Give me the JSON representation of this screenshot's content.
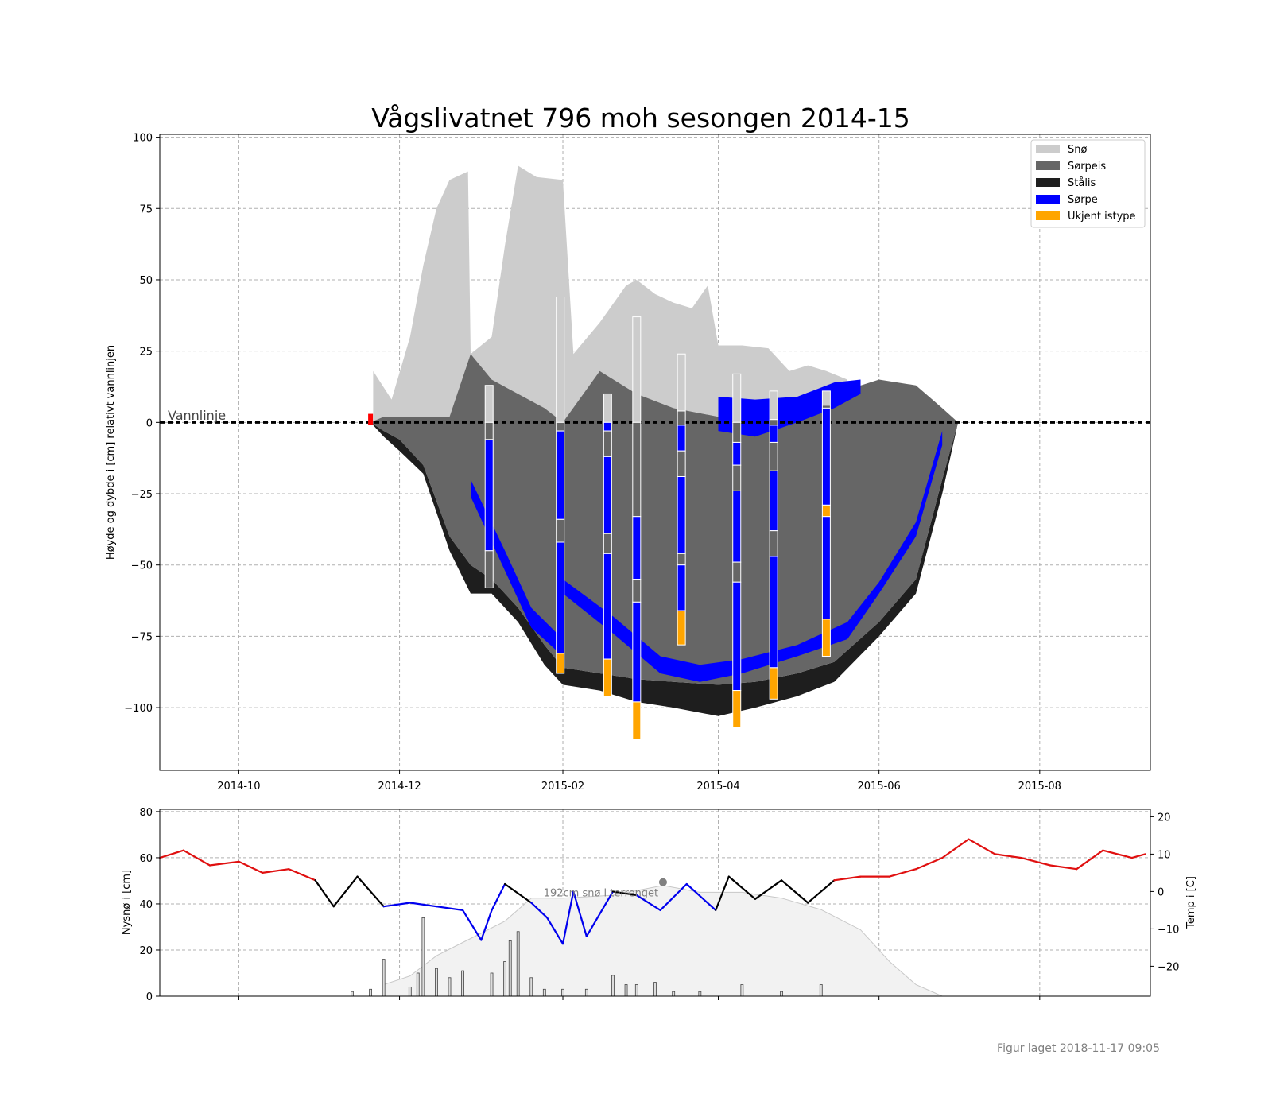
{
  "title": "Vågslivatnet 796 moh sesongen 2014-15",
  "footer": "Figur laget 2018-11-17 09:05",
  "colors": {
    "snow": "#cccccc",
    "slush_ice": "#666666",
    "black_ice": "#1e1e1e",
    "slush": "#0000ff",
    "unknown": "#ffa500",
    "temp_warm": "#e01010",
    "temp_cold": "#0000ee",
    "temp_mid": "#000000",
    "snow_depth_fill": "#f2f2f2"
  },
  "chart_data": [
    {
      "type": "area",
      "ylabel": "Høyde og dybde i [cm] relativt vannlinjen",
      "ylim": [
        -122,
        101
      ],
      "yticks": [
        "100",
        "75",
        "50",
        "25",
        "0",
        "−25",
        "−50",
        "−75",
        "−100"
      ],
      "xlim": [
        "2014-09-01",
        "2015-09-12"
      ],
      "xticks": [
        "2014-10",
        "2014-12",
        "2015-02",
        "2015-04",
        "2015-06",
        "2015-08"
      ],
      "grid": true,
      "legend_position": "top-right",
      "legend": [
        {
          "label": "Snø",
          "color": "#cccccc"
        },
        {
          "label": "Sørpeis",
          "color": "#666666"
        },
        {
          "label": "Stålis",
          "color": "#1e1e1e"
        },
        {
          "label": "Sørpe",
          "color": "#0000ff"
        },
        {
          "label": "Ukjent istype",
          "color": "#ffa500"
        }
      ],
      "waterline_label": "Vannlinje",
      "ice_cover": {
        "dates": [
          "2014-11-20",
          "2014-11-25",
          "2014-12-01",
          "2014-12-10",
          "2014-12-20",
          "2014-12-28",
          "2015-01-05",
          "2015-01-15",
          "2015-01-25",
          "2015-02-01",
          "2015-02-15",
          "2015-03-01",
          "2015-03-15",
          "2015-04-01",
          "2015-04-15",
          "2015-05-01",
          "2015-05-15",
          "2015-06-01",
          "2015-06-15",
          "2015-06-25",
          "2015-07-01"
        ],
        "slush_ice_top": [
          0,
          2,
          2,
          2,
          2,
          24,
          15,
          10,
          5,
          0,
          18,
          10,
          5,
          2,
          0,
          5,
          10,
          15,
          13,
          5,
          0
        ],
        "slush_ice_bottom": [
          0,
          -3,
          -6,
          -15,
          -40,
          -50,
          -55,
          -65,
          -78,
          -86,
          -88,
          -90,
          -91,
          -92,
          -91,
          -88,
          -84,
          -70,
          -55,
          -20,
          0
        ],
        "black_ice_bottom": [
          0,
          -5,
          -10,
          -18,
          -45,
          -60,
          -60,
          -70,
          -85,
          -92,
          -94,
          -98,
          -100,
          -103,
          -100,
          -96,
          -91,
          -75,
          -60,
          -25,
          0
        ]
      },
      "snow": {
        "dates": [
          "2014-11-21",
          "2014-11-28",
          "2014-12-05",
          "2014-12-10",
          "2014-12-15",
          "2014-12-20",
          "2014-12-27",
          "2014-12-28",
          "2015-01-05",
          "2015-01-10",
          "2015-01-15",
          "2015-01-22",
          "2015-02-01",
          "2015-02-05",
          "2015-02-15",
          "2015-02-25",
          "2015-03-01",
          "2015-03-08",
          "2015-03-15",
          "2015-03-22",
          "2015-03-28",
          "2015-04-01",
          "2015-04-10",
          "2015-04-20",
          "2015-04-28",
          "2015-05-05",
          "2015-05-12",
          "2015-05-20"
        ],
        "top": [
          18,
          8,
          30,
          55,
          75,
          85,
          88,
          24,
          30,
          62,
          90,
          86,
          85,
          24,
          35,
          48,
          50,
          45,
          42,
          40,
          48,
          27,
          27,
          26,
          18,
          20,
          18,
          15
        ]
      },
      "slush_bands": [
        {
          "dates": [
            "2014-12-28",
            "2015-01-10",
            "2015-01-20",
            "2015-02-01"
          ],
          "top": [
            -20,
            -45,
            -65,
            -76
          ],
          "bottom": [
            -26,
            -52,
            -72,
            -82
          ]
        },
        {
          "dates": [
            "2015-02-01",
            "2015-02-20",
            "2015-03-10",
            "2015-03-25",
            "2015-04-10",
            "2015-05-01",
            "2015-05-20",
            "2015-06-01",
            "2015-06-15",
            "2015-06-25"
          ],
          "top": [
            -55,
            -68,
            -82,
            -85,
            -83,
            -78,
            -70,
            -56,
            -35,
            -3
          ],
          "bottom": [
            -60,
            -74,
            -88,
            -91,
            -88,
            -82,
            -76,
            -60,
            -40,
            -8
          ]
        },
        {
          "dates": [
            "2015-04-01",
            "2015-04-15",
            "2015-05-01",
            "2015-05-15",
            "2015-05-25"
          ],
          "top": [
            9,
            8,
            9,
            14,
            15
          ],
          "bottom": [
            -3,
            -5,
            0,
            5,
            10
          ]
        }
      ],
      "cores": [
        {
          "date": "2015-01-04",
          "layers": [
            {
              "t": "snow",
              "top": 13,
              "bottom": 0
            },
            {
              "t": "slush_ice",
              "top": 0,
              "bottom": -6
            },
            {
              "t": "slush",
              "top": -6,
              "bottom": -45
            },
            {
              "t": "slush_ice",
              "top": -45,
              "bottom": -58
            }
          ]
        },
        {
          "date": "2015-01-31",
          "layers": [
            {
              "t": "snow",
              "top": 44,
              "bottom": 0
            },
            {
              "t": "slush_ice",
              "top": 0,
              "bottom": -3
            },
            {
              "t": "slush",
              "top": -3,
              "bottom": -34
            },
            {
              "t": "slush_ice",
              "top": -34,
              "bottom": -42
            },
            {
              "t": "slush",
              "top": -42,
              "bottom": -81
            },
            {
              "t": "unknown",
              "top": -81,
              "bottom": -88
            }
          ]
        },
        {
          "date": "2015-02-18",
          "layers": [
            {
              "t": "snow",
              "top": 10,
              "bottom": 0
            },
            {
              "t": "slush",
              "top": 0,
              "bottom": -3
            },
            {
              "t": "slush_ice",
              "top": -3,
              "bottom": -12
            },
            {
              "t": "slush",
              "top": -12,
              "bottom": -39
            },
            {
              "t": "slush_ice",
              "top": -39,
              "bottom": -46
            },
            {
              "t": "slush",
              "top": -46,
              "bottom": -83
            },
            {
              "t": "unknown",
              "top": -83,
              "bottom": -96
            }
          ]
        },
        {
          "date": "2015-03-01",
          "layers": [
            {
              "t": "snow",
              "top": 37,
              "bottom": 0
            },
            {
              "t": "slush_ice",
              "top": 0,
              "bottom": -33
            },
            {
              "t": "slush",
              "top": -33,
              "bottom": -55
            },
            {
              "t": "slush_ice",
              "top": -55,
              "bottom": -63
            },
            {
              "t": "slush",
              "top": -63,
              "bottom": -98
            },
            {
              "t": "unknown",
              "top": -98,
              "bottom": -111
            }
          ]
        },
        {
          "date": "2015-03-18",
          "layers": [
            {
              "t": "snow",
              "top": 24,
              "bottom": 4
            },
            {
              "t": "slush_ice",
              "top": 4,
              "bottom": -1
            },
            {
              "t": "slush",
              "top": -1,
              "bottom": -10
            },
            {
              "t": "slush_ice",
              "top": -10,
              "bottom": -19
            },
            {
              "t": "slush",
              "top": -19,
              "bottom": -46
            },
            {
              "t": "slush_ice",
              "top": -46,
              "bottom": -50
            },
            {
              "t": "slush",
              "top": -50,
              "bottom": -66
            },
            {
              "t": "unknown",
              "top": -66,
              "bottom": -78
            }
          ]
        },
        {
          "date": "2015-04-08",
          "layers": [
            {
              "t": "snow",
              "top": 17,
              "bottom": 0
            },
            {
              "t": "slush_ice",
              "top": 0,
              "bottom": -7
            },
            {
              "t": "slush",
              "top": -7,
              "bottom": -15
            },
            {
              "t": "slush_ice",
              "top": -15,
              "bottom": -24
            },
            {
              "t": "slush",
              "top": -24,
              "bottom": -49
            },
            {
              "t": "slush_ice",
              "top": -49,
              "bottom": -56
            },
            {
              "t": "slush",
              "top": -56,
              "bottom": -94
            },
            {
              "t": "unknown",
              "top": -94,
              "bottom": -107
            }
          ]
        },
        {
          "date": "2015-04-22",
          "layers": [
            {
              "t": "snow",
              "top": 11,
              "bottom": 1
            },
            {
              "t": "slush_ice",
              "top": 1,
              "bottom": -1
            },
            {
              "t": "slush",
              "top": -1,
              "bottom": -7
            },
            {
              "t": "slush_ice",
              "top": -7,
              "bottom": -17
            },
            {
              "t": "slush",
              "top": -17,
              "bottom": -38
            },
            {
              "t": "slush_ice",
              "top": -38,
              "bottom": -47
            },
            {
              "t": "slush",
              "top": -47,
              "bottom": -86
            },
            {
              "t": "unknown",
              "top": -86,
              "bottom": -97
            }
          ]
        },
        {
          "date": "2015-05-12",
          "layers": [
            {
              "t": "snow",
              "top": 11,
              "bottom": 6
            },
            {
              "t": "slush_ice",
              "top": 6,
              "bottom": 5
            },
            {
              "t": "slush",
              "top": 5,
              "bottom": -29
            },
            {
              "t": "unknown",
              "top": -29,
              "bottom": -33
            },
            {
              "t": "slush",
              "top": -33,
              "bottom": -69
            },
            {
              "t": "unknown",
              "top": -69,
              "bottom": -82
            }
          ]
        }
      ],
      "freeze_marker": {
        "date": "2014-11-20",
        "top": 3,
        "bottom": -1,
        "color": "#ff0000"
      }
    },
    {
      "type": "bar",
      "ylabel": "Nysnø i [cm]",
      "y2label": "Temp i [C]",
      "ylim": [
        0,
        81
      ],
      "yticks": [
        "0",
        "20",
        "40",
        "60",
        "80"
      ],
      "y2lim": [
        -28,
        22
      ],
      "y2ticks": [
        "−20",
        "−10",
        "0",
        "10",
        "20"
      ],
      "grid": true,
      "annotation": "192cm snø i terrenget",
      "annotation_point": {
        "date": "2015-03-11",
        "snow_depth_cm": 192
      },
      "snow_depth_terrain": {
        "dates": [
          "2014-11-25",
          "2014-12-05",
          "2014-12-15",
          "2014-12-28",
          "2015-01-10",
          "2015-01-20",
          "2015-02-01",
          "2015-02-20",
          "2015-03-11",
          "2015-03-25",
          "2015-04-10",
          "2015-04-25",
          "2015-05-10",
          "2015-05-25",
          "2015-06-05",
          "2015-06-15",
          "2015-06-25"
        ],
        "depth_cm": [
          20,
          35,
          70,
          100,
          130,
          170,
          170,
          175,
          192,
          180,
          180,
          170,
          150,
          115,
          60,
          20,
          0
        ]
      },
      "temperature": {
        "dates": [
          "2014-09-01",
          "2014-09-10",
          "2014-09-20",
          "2014-10-01",
          "2014-10-10",
          "2014-10-20",
          "2014-10-30",
          "2014-11-06",
          "2014-11-15",
          "2014-11-25",
          "2014-12-05",
          "2014-12-15",
          "2014-12-25",
          "2015-01-01",
          "2015-01-05",
          "2015-01-10",
          "2015-01-20",
          "2015-01-26",
          "2015-02-01",
          "2015-02-05",
          "2015-02-10",
          "2015-02-20",
          "2015-03-01",
          "2015-03-10",
          "2015-03-20",
          "2015-03-31",
          "2015-04-05",
          "2015-04-15",
          "2015-04-25",
          "2015-05-05",
          "2015-05-15",
          "2015-05-25",
          "2015-06-05",
          "2015-06-15",
          "2015-06-25",
          "2015-07-05",
          "2015-07-15",
          "2015-07-25",
          "2015-08-05",
          "2015-08-15",
          "2015-08-25",
          "2015-09-05",
          "2015-09-10"
        ],
        "temp_c": [
          9,
          11,
          7,
          8,
          5,
          6,
          3,
          -4,
          4,
          -4,
          -3,
          -4,
          -5,
          -13,
          -5,
          2,
          -3,
          -7,
          -14,
          0,
          -12,
          0,
          -1,
          -5,
          2,
          -5,
          4,
          -2,
          3,
          -3,
          3,
          4,
          4,
          6,
          9,
          14,
          10,
          9,
          7,
          6,
          11,
          9,
          10
        ]
      },
      "new_snow": {
        "dates": [
          "2014-11-13",
          "2014-11-20",
          "2014-11-25",
          "2014-12-05",
          "2014-12-08",
          "2014-12-10",
          "2014-12-15",
          "2014-12-20",
          "2014-12-25",
          "2015-01-05",
          "2015-01-10",
          "2015-01-12",
          "2015-01-15",
          "2015-01-20",
          "2015-01-25",
          "2015-02-01",
          "2015-02-10",
          "2015-02-20",
          "2015-02-25",
          "2015-03-01",
          "2015-03-08",
          "2015-03-15",
          "2015-03-25",
          "2015-04-10",
          "2015-04-25",
          "2015-05-10"
        ],
        "cm": [
          2,
          3,
          16,
          4,
          10,
          34,
          12,
          8,
          11,
          10,
          15,
          24,
          28,
          8,
          3,
          3,
          3,
          9,
          5,
          5,
          6,
          2,
          2,
          5,
          2,
          5
        ]
      }
    }
  ]
}
